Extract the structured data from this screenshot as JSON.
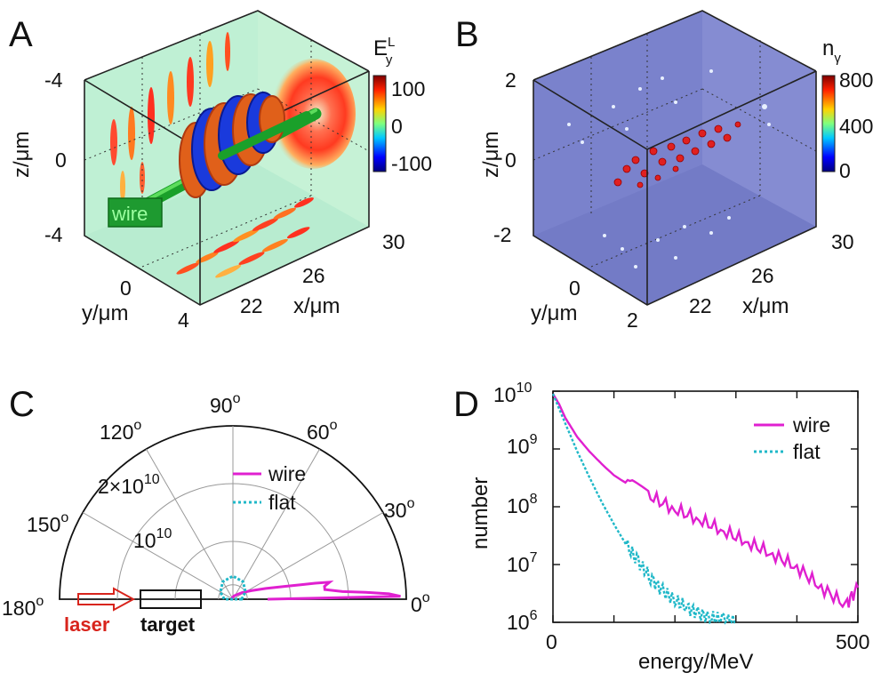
{
  "panels": {
    "A": {
      "label": "A",
      "z_ticks": [
        "-4",
        "0",
        "-4"
      ],
      "y_ticks": [
        "0",
        "4"
      ],
      "x_ticks": [
        "22",
        "26",
        "30"
      ],
      "z_label": "z/μm",
      "y_label": "y/μm",
      "x_label": "x/μm",
      "wire_tag": "wire",
      "colorbar": {
        "title_main": "E",
        "title_sub": "y",
        "title_sup": "L",
        "ticks": [
          "100",
          "0",
          "-100"
        ]
      }
    },
    "B": {
      "label": "B",
      "z_ticks": [
        "2",
        "0",
        "-2"
      ],
      "y_ticks": [
        "0",
        "2"
      ],
      "x_ticks": [
        "22",
        "26",
        "30"
      ],
      "z_label": "z/μm",
      "y_label": "y/μm",
      "x_label": "x/μm",
      "colorbar": {
        "title_main": "n",
        "title_sub": "γ",
        "ticks": [
          "800",
          "400",
          "0"
        ]
      }
    },
    "C": {
      "label": "C",
      "angle_labels": [
        {
          "base": "180",
          "sup": "o"
        },
        {
          "base": "150",
          "sup": "o"
        },
        {
          "base": "120",
          "sup": "o"
        },
        {
          "base": "90",
          "sup": "o"
        },
        {
          "base": "60",
          "sup": "o"
        },
        {
          "base": "30",
          "sup": "o"
        },
        {
          "base": "0",
          "sup": "o"
        }
      ],
      "radial_labels": [
        {
          "base": "10",
          "sup": "10"
        },
        {
          "base": "2×10",
          "sup": "10"
        }
      ],
      "laser_label": "laser",
      "target_label": "target"
    },
    "D": {
      "label": "D",
      "xlabel": "energy/MeV",
      "ylabel": "number",
      "x_ticks": [
        "0",
        "500"
      ],
      "y_ticks": [
        {
          "base": "10",
          "sup": "10"
        },
        {
          "base": "10",
          "sup": "9"
        },
        {
          "base": "10",
          "sup": "8"
        },
        {
          "base": "10",
          "sup": "7"
        },
        {
          "base": "10",
          "sup": "6"
        }
      ]
    }
  },
  "chart_data": [
    {
      "type": "polar",
      "panel": "C",
      "title": "",
      "angular_range_deg": [
        0,
        180
      ],
      "radial_max": 30000000000.0,
      "series": [
        {
          "name": "wire",
          "color": "#e020d0",
          "theta_deg": [
            0,
            1,
            2,
            3,
            4,
            6,
            8,
            10,
            11,
            12,
            14,
            18,
            25,
            35,
            50,
            70,
            90,
            110,
            140,
            180
          ],
          "r": [
            6000000000.0,
            29000000000.0,
            27000000000.0,
            23000000000.0,
            19000000000.0,
            16000000000.0,
            16000000000.0,
            17000000000.0,
            14500000000.0,
            12000000000.0,
            9000000000.0,
            6000000000.0,
            3500000000.0,
            2000000000.0,
            1000000000.0,
            600000000.0,
            400000000.0,
            300000000.0,
            200000000.0,
            200000000.0
          ]
        },
        {
          "name": "flat",
          "color": "#20b8c8",
          "theta_deg": [
            0,
            30,
            60,
            90,
            120,
            150,
            180
          ],
          "r": [
            1500000000.0,
            2500000000.0,
            3500000000.0,
            4000000000.0,
            3500000000.0,
            2500000000.0,
            1500000000.0
          ]
        }
      ],
      "legend": [
        "wire",
        "flat"
      ]
    },
    {
      "type": "line",
      "panel": "D",
      "xlabel": "energy/MeV",
      "ylabel": "number",
      "xlim": [
        0,
        500
      ],
      "ylim": [
        1000000.0,
        10000000000.0
      ],
      "yscale": "log",
      "series": [
        {
          "name": "wire",
          "color": "#e020d0",
          "x": [
            0,
            10,
            20,
            40,
            60,
            80,
            100,
            130,
            160,
            200,
            240,
            280,
            320,
            360,
            400,
            440,
            480,
            500
          ],
          "y": [
            9000000000.0,
            6000000000.0,
            3500000000.0,
            1600000000.0,
            900000000.0,
            550000000.0,
            350000000.0,
            220000000.0,
            150000000.0,
            90000000.0,
            60000000.0,
            38000000.0,
            24000000.0,
            15000000.0,
            9000000.0,
            4000000.0,
            2000000.0,
            4000000.0
          ]
        },
        {
          "name": "flat",
          "color": "#20b8c8",
          "x": [
            0,
            10,
            20,
            40,
            60,
            80,
            100,
            120,
            140,
            160,
            180,
            200,
            220,
            240,
            260,
            280,
            300
          ],
          "y": [
            9000000000.0,
            5000000000.0,
            2800000000.0,
            900000000.0,
            320000000.0,
            120000000.0,
            50000000.0,
            22000000.0,
            11000000.0,
            6000000.0,
            3500000.0,
            2400000.0,
            1800000.0,
            1400000.0,
            1200000.0,
            1100000.0,
            1000000.0
          ]
        }
      ],
      "legend": [
        "wire",
        "flat"
      ]
    }
  ]
}
